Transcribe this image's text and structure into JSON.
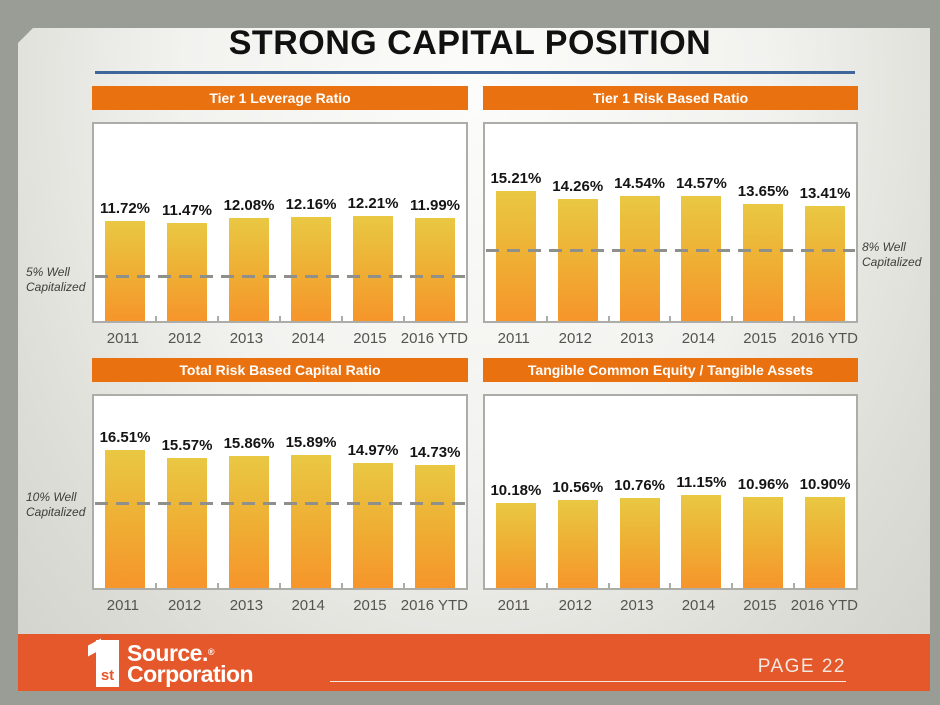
{
  "slide": {
    "title": "STRONG CAPITAL POSITION",
    "footer": {
      "logo_numeral": "1",
      "logo_st": "st",
      "logo_line1": "Source.",
      "logo_registered": "®",
      "logo_line2": "Corporation",
      "page_label": "PAGE 22"
    }
  },
  "colors": {
    "outer_background": "#9A9D95",
    "header_bar_orange": "#E9710F",
    "footer_band_orange": "#E4582B",
    "bar_gradient_top": "#E9C843",
    "bar_gradient_bottom": "#F6952B",
    "title_accent_blue": "#3F669A",
    "reference_dash_gray": "#8F8F8B",
    "chart_border_gray": "#ACACA8",
    "axis_label_gray": "#55544E"
  },
  "chart_data": [
    {
      "type": "bar",
      "title": "Tier 1 Leverage Ratio",
      "categories": [
        "2011",
        "2012",
        "2013",
        "2014",
        "2015",
        "2016 YTD"
      ],
      "values": [
        11.72,
        11.47,
        12.08,
        12.16,
        12.21,
        11.99
      ],
      "value_labels": [
        "11.72%",
        "11.47%",
        "12.08%",
        "12.16%",
        "12.21%",
        "11.99%"
      ],
      "ylim": [
        0,
        23
      ],
      "grid": false,
      "legend": "none",
      "reference_line": {
        "value": 5,
        "label": "5% Well Capitalized",
        "side": "left"
      }
    },
    {
      "type": "bar",
      "title": "Tier 1 Risk Based Ratio",
      "categories": [
        "2011",
        "2012",
        "2013",
        "2014",
        "2015",
        "2016 YTD"
      ],
      "values": [
        15.21,
        14.26,
        14.54,
        14.57,
        13.65,
        13.41
      ],
      "value_labels": [
        "15.21%",
        "14.26%",
        "14.54%",
        "14.57%",
        "13.65%",
        "13.41%"
      ],
      "ylim": [
        0,
        23
      ],
      "grid": false,
      "legend": "none",
      "reference_line": {
        "value": 8,
        "label": "8% Well Capitalized",
        "side": "right"
      }
    },
    {
      "type": "bar",
      "title": "Total Risk Based Capital Ratio",
      "categories": [
        "2011",
        "2012",
        "2013",
        "2014",
        "2015",
        "2016 YTD"
      ],
      "values": [
        16.51,
        15.57,
        15.86,
        15.89,
        14.97,
        14.73
      ],
      "value_labels": [
        "16.51%",
        "15.57%",
        "15.86%",
        "15.89%",
        "14.97%",
        "14.73%"
      ],
      "ylim": [
        0,
        23
      ],
      "grid": false,
      "legend": "none",
      "reference_line": {
        "value": 10,
        "label": "10% Well Capitalized",
        "side": "left"
      }
    },
    {
      "type": "bar",
      "title": "Tangible Common Equity / Tangible Assets",
      "categories": [
        "2011",
        "2012",
        "2013",
        "2014",
        "2015",
        "2016 YTD"
      ],
      "values": [
        10.18,
        10.56,
        10.76,
        11.15,
        10.96,
        10.9
      ],
      "value_labels": [
        "10.18%",
        "10.56%",
        "10.76%",
        "11.15%",
        "10.96%",
        "10.90%"
      ],
      "ylim": [
        0,
        23
      ],
      "grid": false,
      "legend": "none",
      "reference_line": null
    }
  ]
}
